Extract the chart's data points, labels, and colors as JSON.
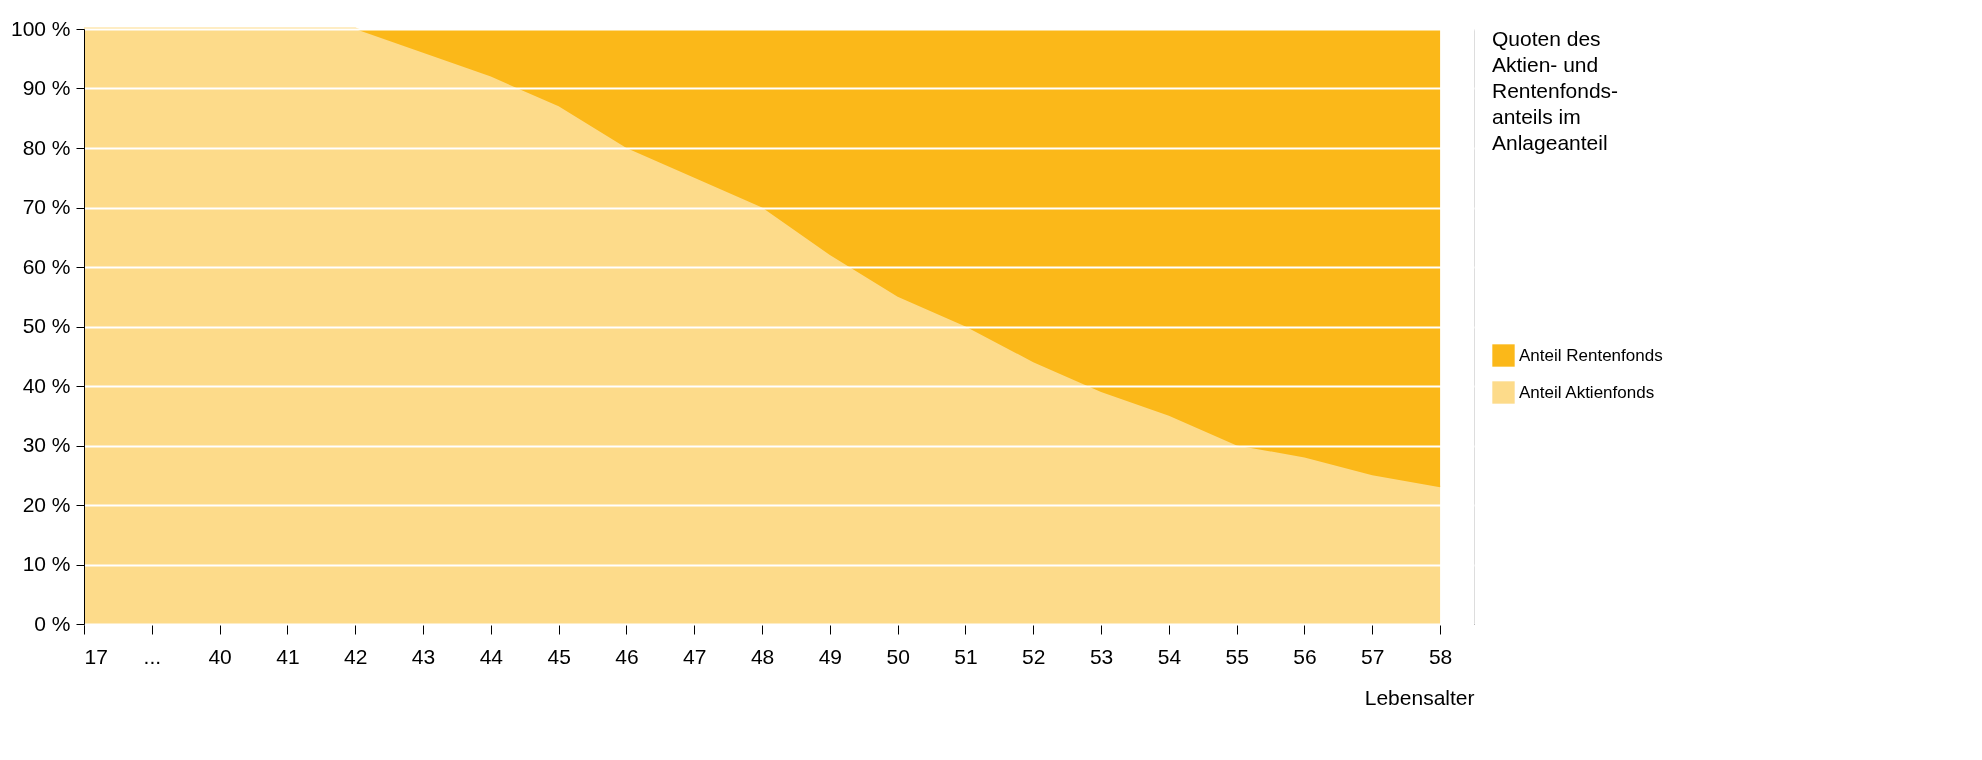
{
  "chart_data": {
    "type": "area",
    "stacked": true,
    "categories": [
      "17",
      "...",
      "40",
      "41",
      "42",
      "43",
      "44",
      "45",
      "46",
      "47",
      "48",
      "49",
      "50",
      "51",
      "52",
      "53",
      "54",
      "55",
      "56",
      "57",
      "58"
    ],
    "series": [
      {
        "name": "Anteil Aktienfonds",
        "color": "#fddb8a",
        "values": [
          100,
          100,
          100,
          100,
          100,
          96,
          92,
          87,
          80,
          75,
          70,
          62,
          55,
          50,
          44,
          39,
          35,
          30,
          28,
          25,
          23
        ]
      },
      {
        "name": "Anteil Rentenfonds",
        "color": "#fbb819",
        "values": [
          0,
          0,
          0,
          0,
          0,
          4,
          8,
          13,
          20,
          25,
          30,
          38,
          45,
          50,
          56,
          61,
          65,
          70,
          72,
          75,
          77
        ]
      }
    ],
    "xlabel": "Lebensalter",
    "legend_title": "Quoten des\nAktien- und\nRentenfonds-\nanteils im\nAnlageanteil",
    "legend": "right",
    "ylim": [
      0,
      100
    ],
    "yticks": [
      {
        "value": 0,
        "label": "0 %"
      },
      {
        "value": 10,
        "label": "10 %"
      },
      {
        "value": 20,
        "label": "20 %"
      },
      {
        "value": 30,
        "label": "30 %"
      },
      {
        "value": 40,
        "label": "40 %"
      },
      {
        "value": 50,
        "label": "50 %"
      },
      {
        "value": 60,
        "label": "60 %"
      },
      {
        "value": 70,
        "label": "70 %"
      },
      {
        "value": 80,
        "label": "80 %"
      },
      {
        "value": 90,
        "label": "90 %"
      },
      {
        "value": 100,
        "label": "100 %"
      }
    ],
    "grid": "y"
  }
}
